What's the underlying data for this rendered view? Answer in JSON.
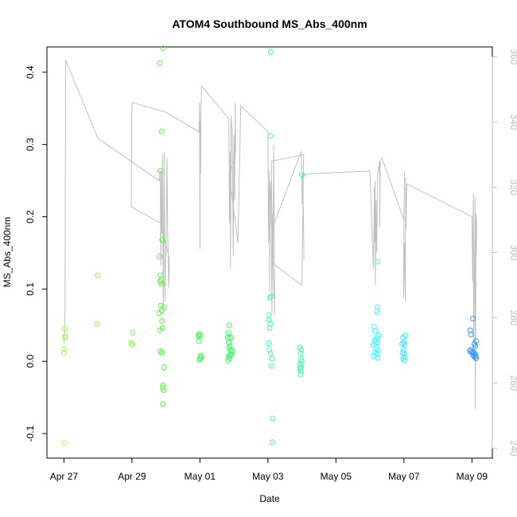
{
  "chart_data": {
    "type": "scatter",
    "title": "ATOM4 Southbound MS_Abs_400nm",
    "xlabel": "Date",
    "ylabel": "MS_Abs_400nm",
    "y2label": "",
    "x_ticks": [
      "Apr 27",
      "Apr 29",
      "May 01",
      "May 03",
      "May 05",
      "May 07",
      "May 09"
    ],
    "xlim": [
      -0.5,
      12.6
    ],
    "ylim": [
      -0.134,
      0.435
    ],
    "y_ticks": [
      -0.1,
      0.0,
      0.1,
      0.2,
      0.3,
      0.4
    ],
    "y2lim": [
      237,
      363
    ],
    "y2_ticks": [
      240,
      260,
      280,
      300,
      320,
      340,
      360
    ],
    "grid": false,
    "legend": "none",
    "colors": {
      "axis": "#000000",
      "y2_axis": "#bdbdbd",
      "line": "#bfbfbf"
    },
    "points": [
      {
        "x": 0.02,
        "y": 0.045,
        "color": "#a3ff33"
      },
      {
        "x": 0.03,
        "y": 0.033,
        "color": "#a3ff33"
      },
      {
        "x": 0.0,
        "y": 0.017,
        "color": "#a3ff33"
      },
      {
        "x": 0.0,
        "y": 0.012,
        "color": "#a3ff33"
      },
      {
        "x": 0.01,
        "y": -0.113,
        "color": "#a3ff33"
      },
      {
        "x": 0.03,
        "y": 0.035,
        "color": "#a3ff33"
      },
      {
        "x": 0.99,
        "y": 0.119,
        "color": "#90ff33"
      },
      {
        "x": 0.97,
        "y": 0.052,
        "color": "#90ff33"
      },
      {
        "x": 2.02,
        "y": 0.04,
        "color": "#6bff33"
      },
      {
        "x": 1.98,
        "y": 0.026,
        "color": "#6bff33"
      },
      {
        "x": 2.0,
        "y": 0.023,
        "color": "#6bff33"
      },
      {
        "x": 2.82,
        "y": 0.413,
        "color": "#4cff33"
      },
      {
        "x": 2.92,
        "y": 0.433,
        "color": "#4cff33"
      },
      {
        "x": 2.87,
        "y": 0.318,
        "color": "#4cff33"
      },
      {
        "x": 2.83,
        "y": 0.264,
        "color": "#4cff33"
      },
      {
        "x": 2.89,
        "y": 0.168,
        "color": "#4cff33"
      },
      {
        "x": 2.81,
        "y": 0.145,
        "color": "#4cff33"
      },
      {
        "x": 2.84,
        "y": 0.119,
        "color": "#4cff33"
      },
      {
        "x": 2.86,
        "y": 0.113,
        "color": "#4cff33"
      },
      {
        "x": 2.83,
        "y": 0.11,
        "color": "#4cff33"
      },
      {
        "x": 2.88,
        "y": 0.107,
        "color": "#4cff33"
      },
      {
        "x": 2.85,
        "y": 0.077,
        "color": "#4cff33"
      },
      {
        "x": 2.95,
        "y": 0.075,
        "color": "#4cff33"
      },
      {
        "x": 2.87,
        "y": 0.07,
        "color": "#4cff33"
      },
      {
        "x": 2.8,
        "y": 0.067,
        "color": "#4cff33"
      },
      {
        "x": 2.89,
        "y": 0.056,
        "color": "#4cff33"
      },
      {
        "x": 2.82,
        "y": 0.043,
        "color": "#4cff33"
      },
      {
        "x": 2.9,
        "y": 0.046,
        "color": "#4cff33"
      },
      {
        "x": 2.84,
        "y": 0.014,
        "color": "#4cff33"
      },
      {
        "x": 2.88,
        "y": 0.012,
        "color": "#4cff33"
      },
      {
        "x": 2.94,
        "y": -0.008,
        "color": "#4cff33"
      },
      {
        "x": 2.92,
        "y": -0.033,
        "color": "#4cff33"
      },
      {
        "x": 2.9,
        "y": -0.036,
        "color": "#4cff33"
      },
      {
        "x": 2.93,
        "y": -0.04,
        "color": "#4cff33"
      },
      {
        "x": 2.91,
        "y": -0.059,
        "color": "#4cff33"
      },
      {
        "x": 3.98,
        "y": 0.038,
        "color": "#33ff4c"
      },
      {
        "x": 3.95,
        "y": 0.035,
        "color": "#33ff4c"
      },
      {
        "x": 4.0,
        "y": 0.036,
        "color": "#33ff4c"
      },
      {
        "x": 3.97,
        "y": 0.028,
        "color": "#33ff4c"
      },
      {
        "x": 4.02,
        "y": 0.008,
        "color": "#33ff4c"
      },
      {
        "x": 4.04,
        "y": 0.006,
        "color": "#33ff4c"
      },
      {
        "x": 4.01,
        "y": 0.004,
        "color": "#33ff4c"
      },
      {
        "x": 3.99,
        "y": 0.002,
        "color": "#33ff4c"
      },
      {
        "x": 4.86,
        "y": 0.05,
        "color": "#33ff5c"
      },
      {
        "x": 4.84,
        "y": 0.04,
        "color": "#33ff5c"
      },
      {
        "x": 4.82,
        "y": 0.033,
        "color": "#33ff5c"
      },
      {
        "x": 4.87,
        "y": 0.032,
        "color": "#33ff5c"
      },
      {
        "x": 4.92,
        "y": 0.033,
        "color": "#33ff5c"
      },
      {
        "x": 4.85,
        "y": 0.026,
        "color": "#33ff5c"
      },
      {
        "x": 4.88,
        "y": 0.021,
        "color": "#33ff5c"
      },
      {
        "x": 4.86,
        "y": 0.018,
        "color": "#33ff5c"
      },
      {
        "x": 4.91,
        "y": 0.016,
        "color": "#33ff5c"
      },
      {
        "x": 4.95,
        "y": 0.014,
        "color": "#33ff5c"
      },
      {
        "x": 4.93,
        "y": 0.01,
        "color": "#33ff5c"
      },
      {
        "x": 4.89,
        "y": 0.009,
        "color": "#33ff5c"
      },
      {
        "x": 4.84,
        "y": 0.007,
        "color": "#33ff5c"
      },
      {
        "x": 4.87,
        "y": 0.004,
        "color": "#33ff5c"
      },
      {
        "x": 4.83,
        "y": 0.001,
        "color": "#33ff5c"
      },
      {
        "x": 6.08,
        "y": 0.428,
        "color": "#33ffc2"
      },
      {
        "x": 6.07,
        "y": 0.312,
        "color": "#33ffc2"
      },
      {
        "x": 6.1,
        "y": 0.09,
        "color": "#33ffc2"
      },
      {
        "x": 6.05,
        "y": 0.088,
        "color": "#33ffc2"
      },
      {
        "x": 6.03,
        "y": 0.064,
        "color": "#33ffc2"
      },
      {
        "x": 6.02,
        "y": 0.057,
        "color": "#33ffc2"
      },
      {
        "x": 6.07,
        "y": 0.052,
        "color": "#33ffc2"
      },
      {
        "x": 6.05,
        "y": 0.046,
        "color": "#33ffc2"
      },
      {
        "x": 6.02,
        "y": 0.025,
        "color": "#33ffc2"
      },
      {
        "x": 6.04,
        "y": 0.016,
        "color": "#33ffc2"
      },
      {
        "x": 6.08,
        "y": 0.011,
        "color": "#33ffc2"
      },
      {
        "x": 6.12,
        "y": 0.004,
        "color": "#33ffc2"
      },
      {
        "x": 6.1,
        "y": -0.006,
        "color": "#33ffc2"
      },
      {
        "x": 6.14,
        "y": -0.079,
        "color": "#33ffc2"
      },
      {
        "x": 6.13,
        "y": -0.112,
        "color": "#33ffc2"
      },
      {
        "x": 7.0,
        "y": 0.258,
        "color": "#33ffa3"
      },
      {
        "x": 6.93,
        "y": 0.019,
        "color": "#33ffa3"
      },
      {
        "x": 6.98,
        "y": 0.016,
        "color": "#33ffa3"
      },
      {
        "x": 6.96,
        "y": 0.011,
        "color": "#33ffa3"
      },
      {
        "x": 6.97,
        "y": 0.003,
        "color": "#33ffa3"
      },
      {
        "x": 6.99,
        "y": 0.0,
        "color": "#33ffa3"
      },
      {
        "x": 6.95,
        "y": -0.004,
        "color": "#33ffa3"
      },
      {
        "x": 6.97,
        "y": -0.009,
        "color": "#33ffa3"
      },
      {
        "x": 6.94,
        "y": -0.01,
        "color": "#33ffa3"
      },
      {
        "x": 6.97,
        "y": -0.013,
        "color": "#33ffa3"
      },
      {
        "x": 6.96,
        "y": -0.018,
        "color": "#33ffa3"
      },
      {
        "x": 9.21,
        "y": 0.138,
        "color": "#33ffff"
      },
      {
        "x": 9.22,
        "y": 0.075,
        "color": "#33ffff"
      },
      {
        "x": 9.2,
        "y": 0.069,
        "color": "#33ffff"
      },
      {
        "x": 9.12,
        "y": 0.048,
        "color": "#33ffff"
      },
      {
        "x": 9.15,
        "y": 0.042,
        "color": "#33ffff"
      },
      {
        "x": 9.25,
        "y": 0.036,
        "color": "#33ffff"
      },
      {
        "x": 9.2,
        "y": 0.033,
        "color": "#33ffff"
      },
      {
        "x": 9.17,
        "y": 0.03,
        "color": "#33ffff"
      },
      {
        "x": 9.13,
        "y": 0.028,
        "color": "#33ffff"
      },
      {
        "x": 9.22,
        "y": 0.026,
        "color": "#33ffff"
      },
      {
        "x": 9.16,
        "y": 0.024,
        "color": "#33ffff"
      },
      {
        "x": 9.1,
        "y": 0.022,
        "color": "#33ffff"
      },
      {
        "x": 9.18,
        "y": 0.018,
        "color": "#33ffff"
      },
      {
        "x": 9.24,
        "y": 0.015,
        "color": "#33ffff"
      },
      {
        "x": 9.14,
        "y": 0.012,
        "color": "#33ffff"
      },
      {
        "x": 9.2,
        "y": 0.01,
        "color": "#33ffff"
      },
      {
        "x": 9.11,
        "y": 0.007,
        "color": "#33ffff"
      },
      {
        "x": 9.23,
        "y": 0.005,
        "color": "#33ffff"
      },
      {
        "x": 10.04,
        "y": 0.036,
        "color": "#33e8ff"
      },
      {
        "x": 9.97,
        "y": 0.033,
        "color": "#33e8ff"
      },
      {
        "x": 10.0,
        "y": 0.026,
        "color": "#33e8ff"
      },
      {
        "x": 9.95,
        "y": 0.024,
        "color": "#33e8ff"
      },
      {
        "x": 10.02,
        "y": 0.023,
        "color": "#33e8ff"
      },
      {
        "x": 9.99,
        "y": 0.016,
        "color": "#33e8ff"
      },
      {
        "x": 9.96,
        "y": 0.012,
        "color": "#33e8ff"
      },
      {
        "x": 10.01,
        "y": 0.01,
        "color": "#33e8ff"
      },
      {
        "x": 10.03,
        "y": 0.006,
        "color": "#33e8ff"
      },
      {
        "x": 9.98,
        "y": 0.004,
        "color": "#33e8ff"
      },
      {
        "x": 10.02,
        "y": 0.001,
        "color": "#33e8ff"
      },
      {
        "x": 12.03,
        "y": 0.059,
        "color": "#3399ff"
      },
      {
        "x": 11.95,
        "y": 0.043,
        "color": "#3399ff"
      },
      {
        "x": 11.97,
        "y": 0.037,
        "color": "#3399ff"
      },
      {
        "x": 12.13,
        "y": 0.028,
        "color": "#3399ff"
      },
      {
        "x": 12.07,
        "y": 0.024,
        "color": "#3399ff"
      },
      {
        "x": 12.1,
        "y": 0.021,
        "color": "#3399ff"
      },
      {
        "x": 11.96,
        "y": 0.016,
        "color": "#3399ff"
      },
      {
        "x": 11.94,
        "y": 0.014,
        "color": "#3399ff"
      },
      {
        "x": 12.02,
        "y": 0.013,
        "color": "#3399ff"
      },
      {
        "x": 11.99,
        "y": 0.012,
        "color": "#3399ff"
      },
      {
        "x": 12.05,
        "y": 0.011,
        "color": "#3399ff"
      },
      {
        "x": 12.09,
        "y": 0.01,
        "color": "#3399ff"
      },
      {
        "x": 12.04,
        "y": 0.008,
        "color": "#3399ff"
      },
      {
        "x": 12.11,
        "y": 0.007,
        "color": "#3399ff"
      },
      {
        "x": 12.08,
        "y": 0.006,
        "color": "#3399ff"
      },
      {
        "x": 12.12,
        "y": 0.004,
        "color": "#3399ff"
      }
    ],
    "line_y2": [
      [
        0.0,
        272
      ],
      [
        0.02,
        276
      ],
      [
        0.03,
        281
      ],
      [
        0.05,
        359
      ],
      [
        1.0,
        335
      ],
      [
        2.8,
        322
      ],
      [
        2.83,
        325
      ],
      [
        2.85,
        296
      ],
      [
        2.87,
        325
      ],
      [
        2.88,
        306
      ],
      [
        2.9,
        330
      ],
      [
        2.92,
        282
      ],
      [
        2.95,
        331
      ],
      [
        2.97,
        285
      ],
      [
        2.99,
        297
      ],
      [
        3.0,
        299
      ],
      [
        3.01,
        308
      ],
      [
        3.03,
        329
      ],
      [
        3.05,
        306
      ],
      [
        3.07,
        298
      ],
      [
        3.08,
        289
      ],
      [
        3.1,
        298
      ],
      [
        2.85,
        309
      ],
      [
        1.98,
        314
      ],
      [
        2.0,
        346
      ],
      [
        3.0,
        343
      ],
      [
        3.97,
        337
      ],
      [
        3.99,
        346
      ],
      [
        4.0,
        301
      ],
      [
        4.01,
        340
      ],
      [
        4.02,
        324
      ],
      [
        4.03,
        343
      ],
      [
        4.05,
        351
      ],
      [
        4.85,
        341
      ],
      [
        4.87,
        309
      ],
      [
        4.89,
        331
      ],
      [
        4.9,
        295
      ],
      [
        4.92,
        342
      ],
      [
        4.95,
        337
      ],
      [
        4.98,
        299
      ],
      [
        5.0,
        336
      ],
      [
        5.02,
        316
      ],
      [
        5.04,
        346
      ],
      [
        5.05,
        331
      ],
      [
        4.87,
        323
      ],
      [
        5.12,
        303
      ],
      [
        5.2,
        345
      ],
      [
        6.0,
        337
      ],
      [
        6.01,
        315
      ],
      [
        6.02,
        303
      ],
      [
        6.04,
        325
      ],
      [
        6.05,
        288
      ],
      [
        6.06,
        316
      ],
      [
        6.08,
        322
      ],
      [
        6.1,
        305
      ],
      [
        6.12,
        281
      ],
      [
        6.13,
        312
      ],
      [
        6.15,
        296
      ],
      [
        6.17,
        333
      ],
      [
        6.19,
        299
      ],
      [
        6.2,
        281
      ],
      [
        6.15,
        297
      ],
      [
        6.23,
        296
      ],
      [
        7.0,
        290
      ],
      [
        7.05,
        330
      ],
      [
        6.1,
        328
      ],
      [
        6.12,
        308
      ],
      [
        6.15,
        308
      ],
      [
        6.98,
        331
      ],
      [
        7.01,
        315
      ],
      [
        7.03,
        320
      ],
      [
        7.05,
        307
      ],
      [
        7.06,
        298
      ],
      [
        7.02,
        324
      ],
      [
        9.0,
        325
      ],
      [
        9.1,
        295
      ],
      [
        9.12,
        308
      ],
      [
        9.13,
        320
      ],
      [
        9.14,
        303
      ],
      [
        9.15,
        322
      ],
      [
        9.16,
        290
      ],
      [
        9.18,
        316
      ],
      [
        9.2,
        300
      ],
      [
        9.22,
        324
      ],
      [
        9.25,
        325
      ],
      [
        9.28,
        328
      ],
      [
        9.29,
        308
      ],
      [
        9.3,
        328
      ],
      [
        9.35,
        329
      ],
      [
        10.0,
        310
      ],
      [
        10.02,
        325
      ],
      [
        10.0,
        312
      ],
      [
        9.99,
        286
      ],
      [
        10.02,
        303
      ],
      [
        10.04,
        285
      ],
      [
        10.05,
        323
      ],
      [
        10.06,
        307
      ],
      [
        10.08,
        321
      ],
      [
        12.0,
        311
      ],
      [
        12.02,
        291
      ],
      [
        12.04,
        318
      ],
      [
        12.05,
        268
      ],
      [
        12.06,
        280
      ],
      [
        12.08,
        302
      ],
      [
        12.09,
        317
      ],
      [
        12.1,
        252
      ],
      [
        12.11,
        280
      ],
      [
        12.12,
        312
      ],
      [
        12.13,
        299
      ],
      [
        12.14,
        310
      ]
    ]
  }
}
